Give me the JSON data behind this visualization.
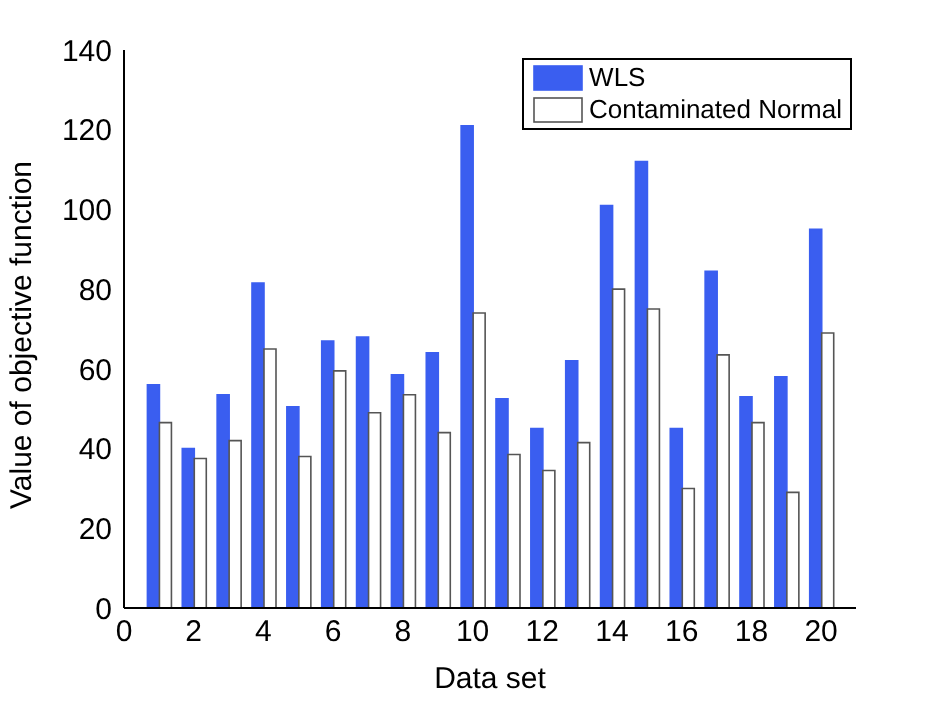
{
  "chart_data": {
    "type": "bar",
    "xlabel": "Data set",
    "ylabel": "Value of objective function",
    "x": [
      1,
      2,
      3,
      4,
      5,
      6,
      7,
      8,
      9,
      10,
      11,
      12,
      13,
      14,
      15,
      16,
      17,
      18,
      19,
      20
    ],
    "series": [
      {
        "name": "WLS",
        "color": "#3a5ef0",
        "values": [
          56,
          40,
          53.5,
          81.5,
          50.5,
          67,
          68,
          58.5,
          64,
          121,
          52.5,
          45,
          62,
          101,
          112,
          45,
          84.5,
          53,
          58,
          95
        ]
      },
      {
        "name": "Contaminated Normal",
        "color": "#ffffff",
        "values": [
          46.5,
          37.5,
          42,
          65,
          38,
          59.5,
          49,
          53.5,
          44,
          74,
          38.5,
          34.5,
          41.5,
          80,
          75,
          30,
          63.5,
          46.5,
          29,
          69
        ]
      }
    ],
    "xlim": [
      0,
      21
    ],
    "xticks": [
      0,
      2,
      4,
      6,
      8,
      10,
      12,
      14,
      16,
      18,
      20
    ],
    "ylim": [
      0,
      140
    ],
    "yticks": [
      0,
      20,
      40,
      60,
      80,
      100,
      120,
      140
    ],
    "legend": "top right"
  }
}
